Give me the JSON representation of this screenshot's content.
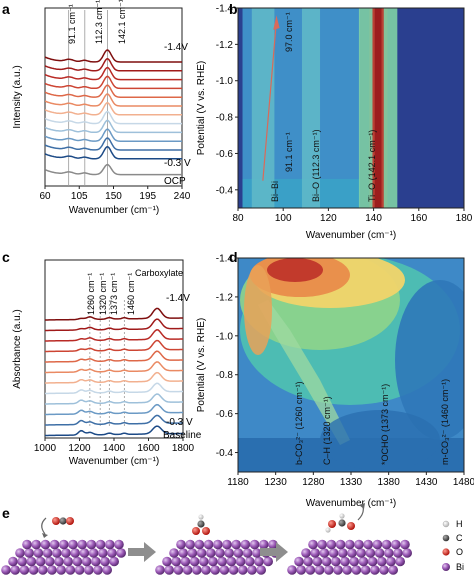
{
  "panels": {
    "a": {
      "letter": "a"
    },
    "b": {
      "letter": "b"
    },
    "c": {
      "letter": "c"
    },
    "d": {
      "letter": "d"
    },
    "e": {
      "letter": "e"
    }
  },
  "colors": {
    "raman_series": [
      "#7f0f0f",
      "#a01a1a",
      "#b92a25",
      "#cd4533",
      "#de6848",
      "#ea8a63",
      "#f2b08f",
      "#c6d8e7",
      "#9ec0da",
      "#6b9ac5",
      "#3e6fa6",
      "#1c4a86",
      "#8a8a8a"
    ],
    "ir_series": [
      "#7f0f0f",
      "#a01a1a",
      "#b92a25",
      "#cd4533",
      "#de6848",
      "#ea8a63",
      "#f2b08f",
      "#c6d8e7",
      "#9ec0da",
      "#6b9ac5",
      "#3e6fa6",
      "#1c4a86"
    ],
    "atom_Bi": "#9b59b6",
    "atom_O": "#d9261c",
    "atom_C": "#555555",
    "atom_H": "#dddddd"
  },
  "chart_data": [
    {
      "panel": "a",
      "type": "line",
      "xlabel": "Wavenumber (cm⁻¹)",
      "ylabel": "Intensity (a.u.)",
      "xlim": [
        60,
        240
      ],
      "xticks": [
        "60",
        "105",
        "150",
        "195",
        "240"
      ],
      "peak_labels": [
        "91.1 cm⁻¹",
        "112.3 cm⁻¹",
        "142.1 cm⁻¹"
      ],
      "peak_positions": [
        91.1,
        112.3,
        142.1
      ],
      "top_label": "-1.4V",
      "bottom_label": "-0.3 V",
      "ocp_label": "OCP",
      "series_count": 13
    },
    {
      "panel": "b",
      "type": "heatmap",
      "xlabel": "Wavenumber (cm⁻¹)",
      "ylabel": "Potential (V vs. RHE)",
      "xlim": [
        80,
        180
      ],
      "ylim": [
        -0.3,
        -1.4
      ],
      "xticks": [
        "80",
        "100",
        "120",
        "140",
        "160",
        "180"
      ],
      "yticks": [
        "-1.4",
        "-1.2",
        "-1.0",
        "-0.8",
        "-0.6",
        "-0.4"
      ],
      "annotations": [
        "97.0 cm⁻¹",
        "Bi–Bi",
        "91.1 cm⁻¹",
        "Bi–O (112.3 cm⁻¹)",
        "Ti–O (142.1 cm⁻¹)"
      ],
      "bands": [
        {
          "center": 142.1,
          "width": 4,
          "intensity": 1.0
        },
        {
          "center": 136.5,
          "width": 3,
          "intensity": 0.45
        },
        {
          "center": 147.5,
          "width": 3,
          "intensity": 0.4
        },
        {
          "center": 112.3,
          "width": 4,
          "intensity": 0.25
        },
        {
          "center": 91.1,
          "width": 5,
          "intensity": 0.2
        }
      ]
    },
    {
      "panel": "c",
      "type": "line",
      "xlabel": "Wavenumber (cm⁻¹)",
      "ylabel": "Absorbance (a.u.)",
      "xlim": [
        1000,
        1800
      ],
      "xticks": [
        "1000",
        "1200",
        "1400",
        "1600",
        "1800"
      ],
      "peak_labels": [
        "1260 cm⁻¹",
        "1320 cm⁻¹",
        "1373 cm⁻¹",
        "1460 cm⁻¹",
        "Carboxylate"
      ],
      "peak_positions": [
        1260,
        1320,
        1373,
        1460,
        1650
      ],
      "top_label": "-1.4V",
      "bottom_label": "-0.3 V",
      "baseline_label": "Baseline",
      "series_count": 12
    },
    {
      "panel": "d",
      "type": "heatmap",
      "xlabel": "Wavenumber (cm⁻¹)",
      "ylabel": "Potential (V vs. RHE)",
      "xlim": [
        1180,
        1480
      ],
      "ylim": [
        -0.3,
        -1.4
      ],
      "xticks": [
        "1180",
        "1230",
        "1280",
        "1330",
        "1380",
        "1430",
        "1480"
      ],
      "yticks": [
        "-1.4",
        "-1.2",
        "-1.0",
        "-0.8",
        "-0.6",
        "-0.4"
      ],
      "annotations": [
        "b-CO₃²⁻ (1260 cm⁻¹)",
        "C–H (1320 cm⁻¹)",
        "*OCHO (1373 cm⁻¹)",
        "m-CO₃²⁻ (1460 cm⁻¹)"
      ]
    }
  ],
  "legend_e": {
    "items": [
      {
        "label": "H",
        "color": "#dddddd"
      },
      {
        "label": "C",
        "color": "#555555"
      },
      {
        "label": "O",
        "color": "#d9261c"
      },
      {
        "label": "Bi",
        "color": "#9b59b6"
      }
    ]
  }
}
